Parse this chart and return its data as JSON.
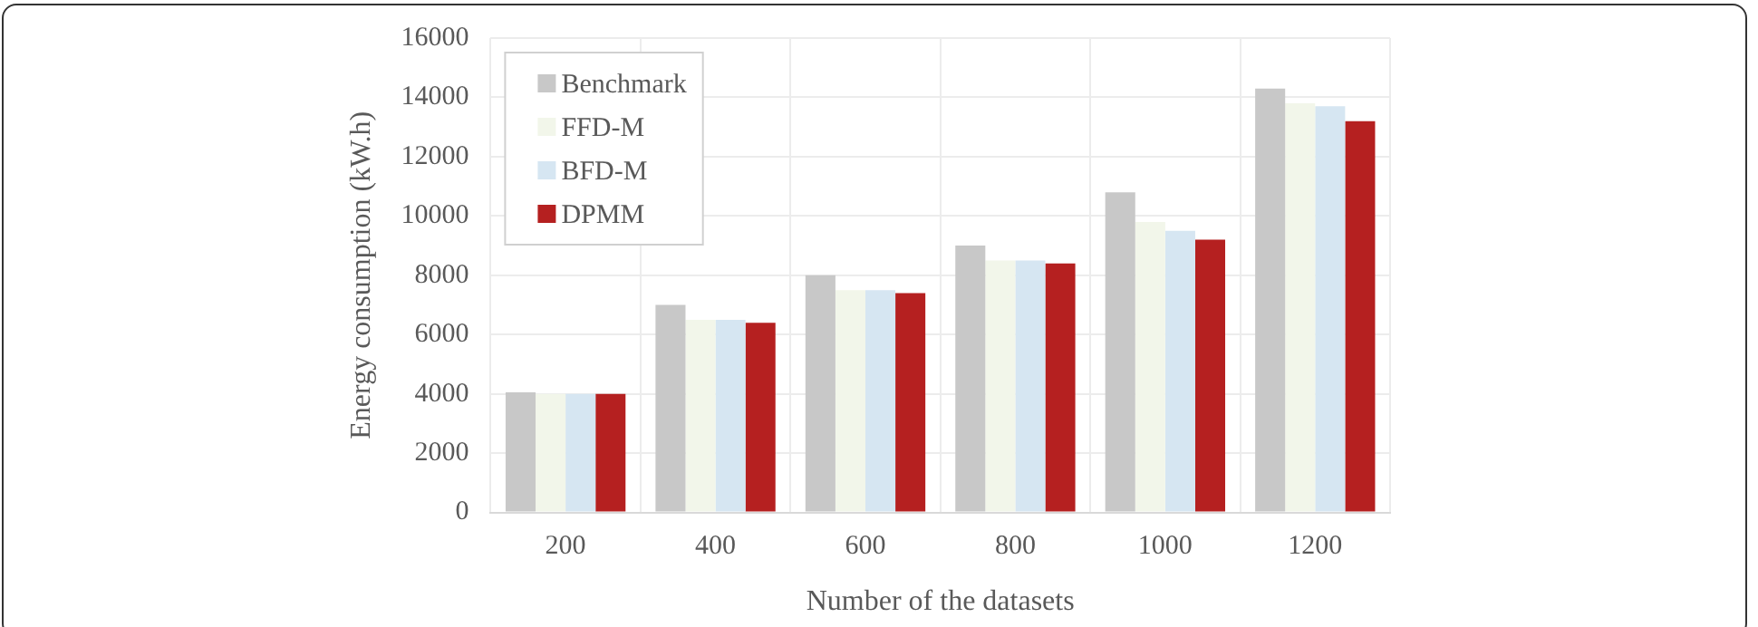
{
  "chart_data": {
    "type": "bar",
    "xlabel": "Number of the datasets",
    "ylabel": "Energy consumption (kW.h)",
    "categories": [
      "200",
      "400",
      "600",
      "800",
      "1000",
      "1200"
    ],
    "series": [
      {
        "name": "Benchmark",
        "color": "#c8c8c8",
        "values": [
          4050,
          7000,
          8000,
          9000,
          10800,
          14300
        ]
      },
      {
        "name": "FFD-M",
        "color": "#f2f6ea",
        "values": [
          4000,
          6500,
          7500,
          8500,
          9800,
          13800
        ]
      },
      {
        "name": "BFD-M",
        "color": "#d6e6f2",
        "values": [
          4000,
          6500,
          7500,
          8500,
          9500,
          13700
        ]
      },
      {
        "name": "DPMM",
        "color": "#b52020",
        "values": [
          4000,
          6400,
          7400,
          8400,
          9200,
          13200
        ]
      }
    ],
    "ylim": [
      0,
      16000
    ],
    "yticks": [
      0,
      2000,
      4000,
      6000,
      8000,
      10000,
      12000,
      14000,
      16000
    ],
    "grid": true,
    "legend": "top left"
  }
}
